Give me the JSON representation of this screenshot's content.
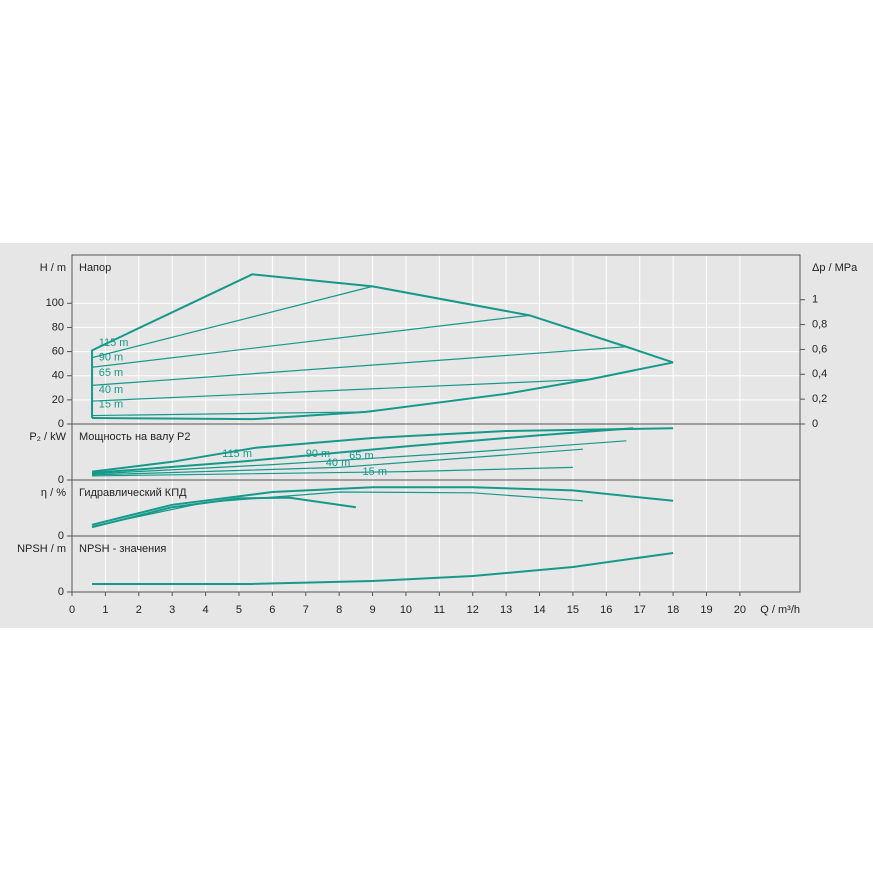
{
  "chart_data": [
    {
      "type": "line",
      "title": "Напор",
      "ylabel": "H / m",
      "y2label": "Δp / MPa",
      "color": "#16998a",
      "ylim": [
        0,
        140
      ],
      "yticks": [
        0,
        20,
        40,
        60,
        80,
        100
      ],
      "y2lim": [
        0,
        1.36
      ],
      "y2ticks": [
        0,
        {
          "value": 0.2,
          "label": "0,2"
        },
        {
          "value": 0.4,
          "label": "0,4"
        },
        {
          "value": 0.6,
          "label": "0,6"
        },
        {
          "value": 0.8,
          "label": "0,8"
        },
        1
      ],
      "series": [
        {
          "x": [
            0.6,
            0.6,
            5.4,
            9,
            13.7,
            16.6,
            18
          ],
          "values": [
            5,
            61,
            124,
            114,
            90,
            64,
            51
          ]
        },
        {
          "x": [
            0.6,
            5.4,
            8.8,
            13,
            15.5,
            18
          ],
          "values": [
            5,
            4,
            10,
            25,
            37,
            51
          ]
        },
        {
          "x": [
            0.6,
            9
          ],
          "values": [
            55,
            114
          ]
        },
        {
          "x": [
            0.6,
            13.7
          ],
          "values": [
            47,
            90
          ]
        },
        {
          "x": [
            0.6,
            16.6
          ],
          "values": [
            32,
            64
          ]
        },
        {
          "x": [
            0.6,
            15.5
          ],
          "values": [
            19,
            37
          ]
        },
        {
          "x": [
            0.6,
            8.8
          ],
          "values": [
            7,
            10
          ]
        }
      ],
      "annotations": [
        {
          "text": "115 m",
          "x": 0.8,
          "y": 67
        },
        {
          "text": "90 m",
          "x": 0.8,
          "y": 55
        },
        {
          "text": "65 m",
          "x": 0.8,
          "y": 42
        },
        {
          "text": "40 m",
          "x": 0.8,
          "y": 28
        },
        {
          "text": "15 m",
          "x": 0.8,
          "y": 16
        }
      ]
    },
    {
      "type": "line",
      "title": "Мощность на валу P2",
      "ylabel": "P₂ / kW",
      "color": "#16998a",
      "ylim": [
        0,
        4
      ],
      "yticks": [
        0
      ],
      "series": [
        {
          "x": [
            0.6,
            3,
            5.5,
            9,
            13,
            18
          ],
          "values": [
            0.6,
            1.3,
            2.3,
            3.0,
            3.5,
            3.7
          ]
        },
        {
          "x": [
            0.6,
            5,
            10,
            14,
            16.8
          ],
          "values": [
            0.5,
            1.3,
            2.4,
            3.2,
            3.7
          ]
        },
        {
          "x": [
            0.6,
            6,
            12,
            16.6
          ],
          "values": [
            0.43,
            1.1,
            2.0,
            2.8
          ]
        },
        {
          "x": [
            0.6,
            8,
            15.3
          ],
          "values": [
            0.36,
            0.9,
            2.2
          ]
        },
        {
          "x": [
            0.6,
            10,
            15
          ],
          "values": [
            0.29,
            0.6,
            0.9
          ]
        }
      ],
      "annotations": [
        {
          "text": "115 m",
          "x": 4.5,
          "y": 1.86
        },
        {
          "text": "90 m",
          "x": 7,
          "y": 1.86
        },
        {
          "text": "65 m",
          "x": 8.3,
          "y": 1.71
        },
        {
          "text": "40 m",
          "x": 7.6,
          "y": 1.21
        },
        {
          "text": "15 m",
          "x": 8.7,
          "y": 0.57
        }
      ]
    },
    {
      "type": "line",
      "title": "Гидравлический КПД",
      "ylabel": "η / %",
      "color": "#16998a",
      "ylim": [
        0,
        70
      ],
      "yticks": [
        0
      ],
      "series": [
        {
          "x": [
            0.6,
            3,
            6,
            9,
            12,
            15,
            18
          ],
          "values": [
            14,
            39,
            55,
            61,
            61,
            57,
            44
          ]
        },
        {
          "x": [
            0.6,
            3,
            5,
            6.5,
            8.5
          ],
          "values": [
            11,
            36,
            47,
            48,
            36
          ]
        },
        {
          "x": [
            0.6,
            4,
            8,
            12,
            15.3
          ],
          "values": [
            12,
            42,
            55,
            54,
            44
          ]
        }
      ]
    },
    {
      "type": "line",
      "title": "NPSH - значения",
      "ylabel": "NPSH / m",
      "xlabel": "Q / m³/h",
      "color": "#16998a",
      "ylim": [
        0,
        6
      ],
      "yticks": [
        0
      ],
      "xlim": [
        0,
        21.8
      ],
      "xticks": [
        0,
        1,
        2,
        3,
        4,
        5,
        6,
        7,
        8,
        9,
        10,
        11,
        12,
        13,
        14,
        15,
        16,
        17,
        18,
        19,
        20
      ],
      "series": [
        {
          "x": [
            0.6,
            5.4,
            9,
            12,
            15,
            18
          ],
          "values": [
            0.86,
            0.86,
            1.18,
            1.71,
            2.68,
            4.18
          ]
        }
      ]
    }
  ]
}
